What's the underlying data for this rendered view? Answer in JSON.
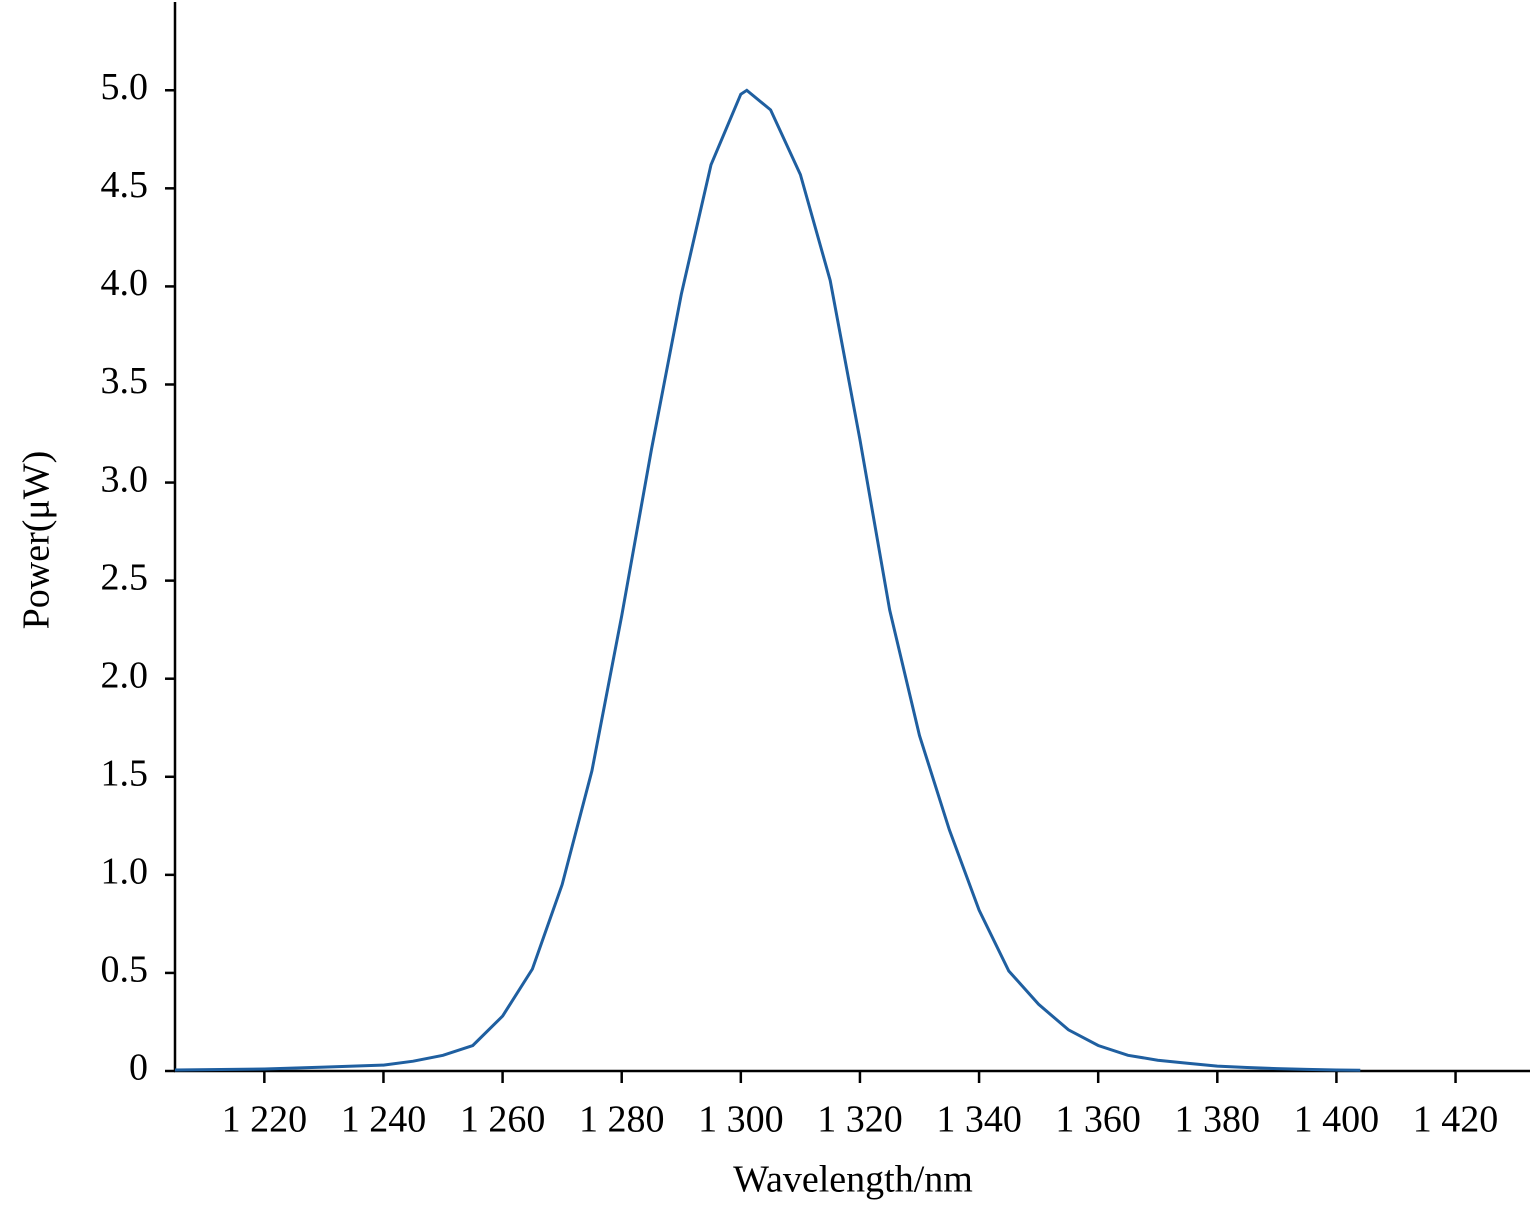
{
  "chart_data": {
    "type": "line",
    "x_label": "Wavelength/nm",
    "y_label": "Power(μW)",
    "x": [
      1205,
      1220,
      1230,
      1240,
      1245,
      1250,
      1255,
      1260,
      1265,
      1270,
      1275,
      1280,
      1285,
      1290,
      1295,
      1300,
      1301,
      1305,
      1310,
      1315,
      1320,
      1325,
      1330,
      1335,
      1340,
      1345,
      1350,
      1355,
      1360,
      1365,
      1370,
      1375,
      1380,
      1385,
      1390,
      1395,
      1400,
      1404
    ],
    "series": [
      {
        "color": "#1f5fa0",
        "values": [
          0.005,
          0.01,
          0.02,
          0.03,
          0.05,
          0.08,
          0.13,
          0.28,
          0.52,
          0.95,
          1.53,
          2.32,
          3.17,
          3.96,
          4.62,
          4.98,
          5.0,
          4.9,
          4.57,
          4.03,
          3.22,
          2.35,
          1.71,
          1.23,
          0.82,
          0.51,
          0.34,
          0.21,
          0.13,
          0.08,
          0.055,
          0.04,
          0.025,
          0.018,
          0.012,
          0.008,
          0.005,
          0.004
        ]
      }
    ],
    "xlim": [
      1205,
      1432.5
    ],
    "ylim": [
      0,
      5.45
    ],
    "xticks": [
      {
        "value": 1220,
        "label": "1 220"
      },
      {
        "value": 1240,
        "label": "1 240"
      },
      {
        "value": 1260,
        "label": "1 260"
      },
      {
        "value": 1280,
        "label": "1 280"
      },
      {
        "value": 1300,
        "label": "1 300"
      },
      {
        "value": 1320,
        "label": "1 320"
      },
      {
        "value": 1340,
        "label": "1 340"
      },
      {
        "value": 1360,
        "label": "1 360"
      },
      {
        "value": 1380,
        "label": "1 380"
      },
      {
        "value": 1400,
        "label": "1 400"
      },
      {
        "value": 1420,
        "label": "1 420"
      }
    ],
    "yticks": [
      0,
      0.5,
      {
        "value": 1,
        "label": "1.0"
      },
      1.5,
      {
        "value": 2,
        "label": "2.0"
      },
      2.5,
      {
        "value": 3,
        "label": "3.0"
      },
      3.5,
      {
        "value": 4,
        "label": "4.0"
      },
      4.5,
      {
        "value": 5,
        "label": "5.0"
      }
    ]
  }
}
